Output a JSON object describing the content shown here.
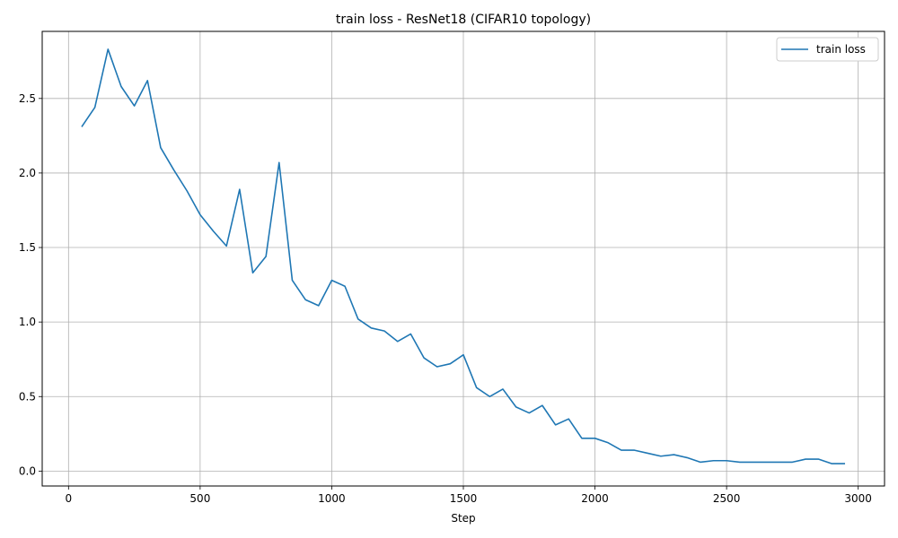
{
  "chart_data": {
    "type": "line",
    "title": "train loss - ResNet18 (CIFAR10 topology)",
    "xlabel": "Step",
    "ylabel": "",
    "xlim": [
      -100,
      3100
    ],
    "ylim": [
      -0.1,
      2.95
    ],
    "xticks": [
      0,
      500,
      1000,
      1500,
      2000,
      2500,
      3000
    ],
    "yticks": [
      0.0,
      0.5,
      1.0,
      1.5,
      2.0,
      2.5
    ],
    "xtick_labels": [
      "0",
      "500",
      "1000",
      "1500",
      "2000",
      "2500",
      "3000"
    ],
    "ytick_labels": [
      "0.0",
      "0.5",
      "1.0",
      "1.5",
      "2.0",
      "2.5"
    ],
    "grid": true,
    "legend_position": "top-right",
    "series": [
      {
        "name": "train loss",
        "color": "#1f77b4",
        "x": [
          50,
          100,
          150,
          200,
          250,
          300,
          350,
          400,
          450,
          500,
          550,
          600,
          650,
          700,
          750,
          800,
          850,
          900,
          950,
          1000,
          1050,
          1100,
          1150,
          1200,
          1250,
          1300,
          1350,
          1400,
          1450,
          1500,
          1550,
          1600,
          1650,
          1700,
          1750,
          1800,
          1850,
          1900,
          1950,
          2000,
          2050,
          2100,
          2150,
          2200,
          2250,
          2300,
          2350,
          2400,
          2450,
          2500,
          2550,
          2600,
          2650,
          2700,
          2750,
          2800,
          2850,
          2900,
          2950
        ],
        "y": [
          2.31,
          2.44,
          2.83,
          2.58,
          2.45,
          2.62,
          2.17,
          2.02,
          1.88,
          1.72,
          1.61,
          1.51,
          1.89,
          1.33,
          1.44,
          2.07,
          1.28,
          1.15,
          1.11,
          1.28,
          1.24,
          1.02,
          0.96,
          0.94,
          0.87,
          0.92,
          0.76,
          0.7,
          0.72,
          0.78,
          0.56,
          0.5,
          0.55,
          0.43,
          0.39,
          0.44,
          0.31,
          0.35,
          0.22,
          0.22,
          0.19,
          0.14,
          0.14,
          0.12,
          0.1,
          0.11,
          0.09,
          0.06,
          0.07,
          0.07,
          0.06,
          0.06,
          0.06,
          0.06,
          0.06,
          0.08,
          0.08,
          0.05,
          0.05
        ]
      }
    ]
  }
}
